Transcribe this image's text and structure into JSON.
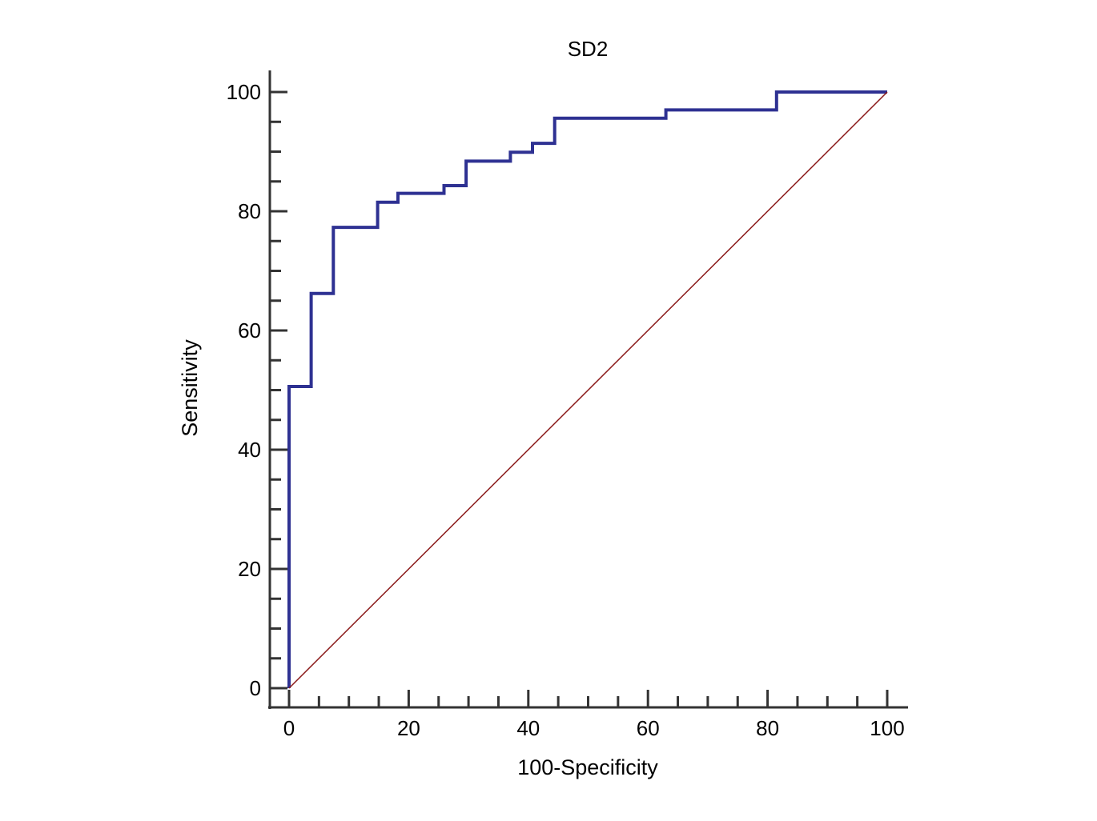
{
  "chart_data": {
    "type": "line",
    "title": "SD2",
    "xlabel": "100-Specificity",
    "ylabel": "Sensitivity",
    "xlim": [
      0,
      100
    ],
    "ylim": [
      0,
      100
    ],
    "x_ticks": [
      "0",
      "20",
      "40",
      "60",
      "80",
      "100"
    ],
    "y_ticks": [
      "0",
      "20",
      "40",
      "60",
      "80",
      "100"
    ],
    "x_minor_step": 5,
    "y_minor_step": 5,
    "grid": false,
    "series": [
      {
        "color": "#2e3192",
        "style": "step",
        "points": [
          [
            0,
            0
          ],
          [
            0,
            50.6
          ],
          [
            3.7,
            50.6
          ],
          [
            3.7,
            66.2
          ],
          [
            7.4,
            66.2
          ],
          [
            7.4,
            77.3
          ],
          [
            14.8,
            77.3
          ],
          [
            14.8,
            81.5
          ],
          [
            18.2,
            81.5
          ],
          [
            18.2,
            83.0
          ],
          [
            25.9,
            83.0
          ],
          [
            25.9,
            84.3
          ],
          [
            29.6,
            84.3
          ],
          [
            29.6,
            88.4
          ],
          [
            37.0,
            88.4
          ],
          [
            37.0,
            89.9
          ],
          [
            40.7,
            89.9
          ],
          [
            40.7,
            91.4
          ],
          [
            44.4,
            91.4
          ],
          [
            44.4,
            95.6
          ],
          [
            63.0,
            95.6
          ],
          [
            63.0,
            97.0
          ],
          [
            81.5,
            97.0
          ],
          [
            81.5,
            100
          ],
          [
            100,
            100
          ]
        ]
      },
      {
        "color": "#8b1a1a",
        "style": "diagonal",
        "points": [
          [
            0,
            0
          ],
          [
            100,
            100
          ]
        ]
      }
    ]
  }
}
